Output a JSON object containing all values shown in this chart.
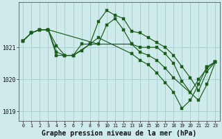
{
  "background_color": "#ceeaea",
  "grid_color": "#aacece",
  "line_color": "#1a5c1a",
  "marker_color": "#1a5c1a",
  "xlabel": "Graphe pression niveau de la mer (hPa)",
  "xlabel_fontsize": 7.0,
  "xlim": [
    -0.5,
    23.5
  ],
  "ylim": [
    1018.7,
    1022.4
  ],
  "yticks": [
    1019,
    1020,
    1021
  ],
  "xticks": [
    0,
    1,
    2,
    3,
    4,
    5,
    6,
    7,
    8,
    9,
    10,
    11,
    12,
    13,
    14,
    15,
    16,
    17,
    18,
    19,
    20,
    21,
    22,
    23
  ],
  "series": [
    {
      "x": [
        0,
        1,
        2,
        3,
        9,
        10,
        11,
        12,
        13,
        14,
        15,
        16,
        17,
        18,
        21,
        22,
        23
      ],
      "y": [
        1021.2,
        1021.45,
        1021.55,
        1021.55,
        1021.1,
        1021.7,
        1021.9,
        1021.55,
        1021.1,
        1020.85,
        1020.75,
        1020.6,
        1020.35,
        1020.05,
        1019.35,
        1019.85,
        1020.55
      ]
    },
    {
      "x": [
        0,
        1,
        2,
        3,
        4,
        5,
        6,
        8,
        9,
        10,
        11,
        12,
        13,
        14,
        15,
        16,
        17,
        18,
        19,
        20,
        21,
        22,
        23
      ],
      "y": [
        1021.2,
        1021.45,
        1021.55,
        1021.55,
        1021.05,
        1020.75,
        1020.75,
        1021.1,
        1021.8,
        1022.15,
        1022.0,
        1021.9,
        1021.5,
        1021.45,
        1021.3,
        1021.15,
        1021.0,
        1020.75,
        1020.4,
        1020.05,
        1019.65,
        1020.25,
        1020.55
      ]
    },
    {
      "x": [
        0,
        1,
        2,
        3,
        4,
        5,
        6,
        7,
        8,
        9,
        13,
        14,
        15,
        16,
        17,
        18,
        19,
        20,
        21,
        22,
        23
      ],
      "y": [
        1021.2,
        1021.45,
        1021.55,
        1021.55,
        1020.75,
        1020.75,
        1020.75,
        1020.9,
        1021.1,
        1021.3,
        1020.8,
        1020.6,
        1020.45,
        1020.2,
        1019.9,
        1019.6,
        1019.1,
        1019.35,
        1019.85,
        1020.4,
        1020.55
      ]
    },
    {
      "x": [
        0,
        1,
        2,
        3,
        4,
        5,
        6,
        7,
        8,
        13,
        14,
        15,
        16,
        17,
        18,
        19,
        20,
        21,
        22,
        23
      ],
      "y": [
        1021.2,
        1021.45,
        1021.55,
        1021.55,
        1020.85,
        1020.75,
        1020.75,
        1021.1,
        1021.1,
        1021.1,
        1021.0,
        1021.0,
        1021.0,
        1020.8,
        1020.5,
        1019.95,
        1019.6,
        1020.0,
        1020.35,
        1020.55
      ]
    }
  ]
}
